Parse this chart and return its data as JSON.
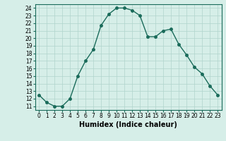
{
  "x": [
    0,
    1,
    2,
    3,
    4,
    5,
    6,
    7,
    8,
    9,
    10,
    11,
    12,
    13,
    14,
    15,
    16,
    17,
    18,
    19,
    20,
    21,
    22,
    23
  ],
  "y": [
    12.5,
    11.5,
    11.0,
    11.0,
    12.0,
    15.0,
    17.0,
    18.5,
    21.7,
    23.2,
    24.0,
    24.0,
    23.7,
    23.0,
    20.2,
    20.2,
    21.0,
    21.2,
    19.2,
    17.8,
    16.2,
    15.3,
    13.7,
    12.5
  ],
  "line_color": "#1a6b5a",
  "marker": "o",
  "markersize": 2.5,
  "linewidth": 1.0,
  "bg_color": "#d6eee8",
  "grid_color": "#b0d4cc",
  "xlabel": "Humidex (Indice chaleur)",
  "ylabel": "",
  "xlim": [
    -0.5,
    23.5
  ],
  "ylim": [
    10.5,
    24.5
  ],
  "yticks": [
    11,
    12,
    13,
    14,
    15,
    16,
    17,
    18,
    19,
    20,
    21,
    22,
    23,
    24
  ],
  "xticks": [
    0,
    1,
    2,
    3,
    4,
    5,
    6,
    7,
    8,
    9,
    10,
    11,
    12,
    13,
    14,
    15,
    16,
    17,
    18,
    19,
    20,
    21,
    22,
    23
  ],
  "tick_fontsize": 5.5,
  "label_fontsize": 7.0
}
